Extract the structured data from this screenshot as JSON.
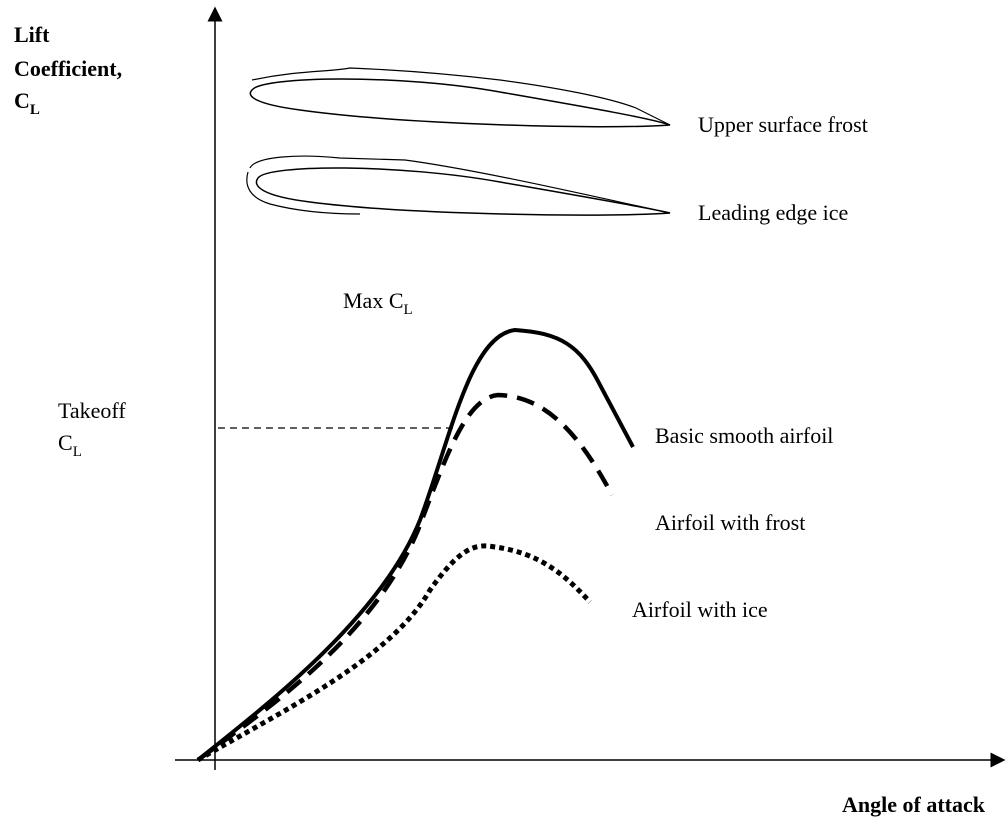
{
  "axes": {
    "y_label": {
      "lines": [
        "Lift",
        "Coefficient,",
        "C"
      ],
      "subscript": "L"
    },
    "x_label": "Angle of attack"
  },
  "annotations": {
    "max": {
      "text": "Max C",
      "subscript": "L"
    },
    "takeoff": {
      "lines": [
        "Takeoff",
        "C"
      ],
      "subscript": "L"
    }
  },
  "airfoils": [
    {
      "label": "Upper surface frost"
    },
    {
      "label": "Leading edge ice"
    }
  ],
  "curves": [
    {
      "label": "Basic smooth airfoil"
    },
    {
      "label": "Airfoil with frost"
    },
    {
      "label": "Airfoil with ice"
    }
  ]
}
